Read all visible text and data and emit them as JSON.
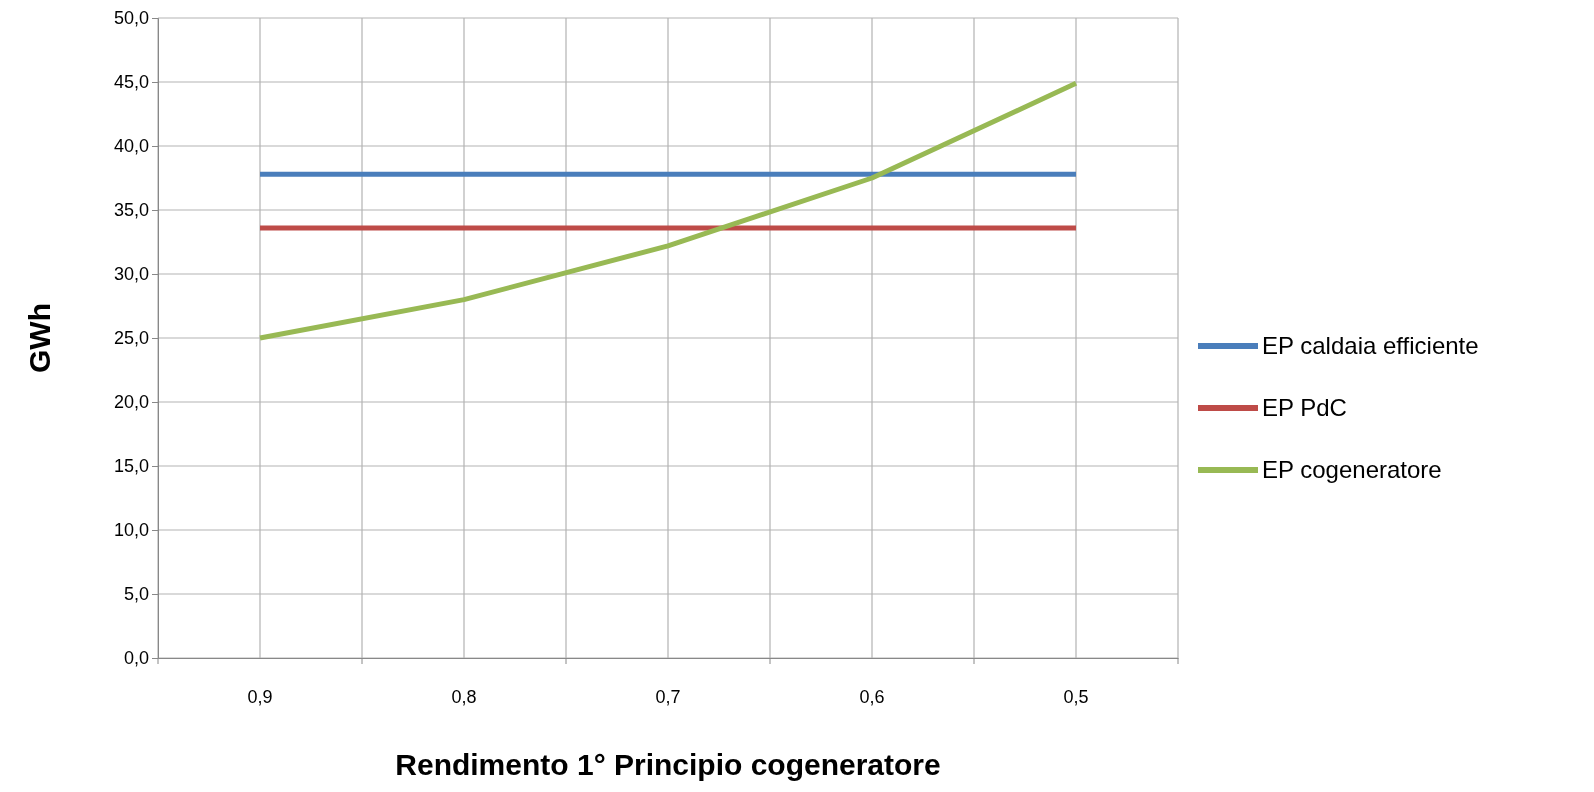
{
  "chart_data": {
    "type": "line",
    "xlabel": "Rendimento 1° Principio cogeneratore",
    "ylabel": "GWh",
    "categories": [
      "0,9",
      "0,8",
      "0,7",
      "0,6",
      "0,5"
    ],
    "series": [
      {
        "name": "EP caldaia efficiente",
        "color": "#4a7ebb",
        "values": [
          37.8,
          37.8,
          37.8,
          37.8,
          37.8
        ]
      },
      {
        "name": "EP PdC",
        "color": "#be4b48",
        "values": [
          33.6,
          33.6,
          33.6,
          33.6,
          33.6
        ]
      },
      {
        "name": "EP cogeneratore",
        "color": "#98b954",
        "values": [
          25.0,
          28.0,
          32.2,
          37.5,
          44.9
        ]
      }
    ],
    "ylim": [
      0,
      50
    ],
    "yticks": [
      {
        "value": 0,
        "label": "0,0"
      },
      {
        "value": 5,
        "label": "5,0"
      },
      {
        "value": 10,
        "label": "10,0"
      },
      {
        "value": 15,
        "label": "15,0"
      },
      {
        "value": 20,
        "label": "20,0"
      },
      {
        "value": 25,
        "label": "25,0"
      },
      {
        "value": 30,
        "label": "30,0"
      },
      {
        "value": 35,
        "label": "35,0"
      },
      {
        "value": 40,
        "label": "40,0"
      },
      {
        "value": 45,
        "label": "45,0"
      },
      {
        "value": 50,
        "label": "50,0"
      }
    ],
    "grid": true,
    "legend": "right",
    "marker": "none",
    "line_style": "solid"
  }
}
